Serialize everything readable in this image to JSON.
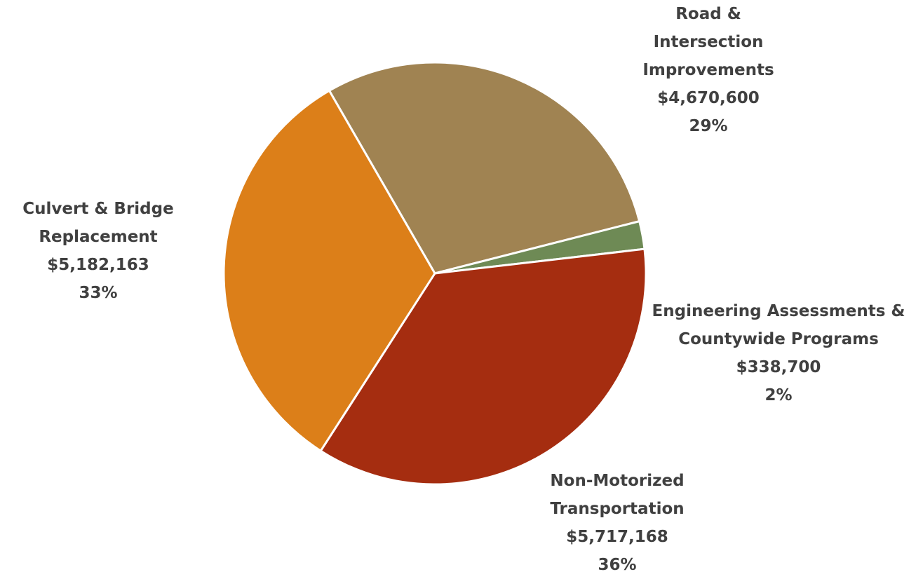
{
  "chart_data": {
    "type": "pie",
    "categories": [
      "Road & Intersection Improvements",
      "Engineering Assessments & Countywide Programs",
      "Non-Motorized Transportation",
      "Culvert & Bridge Replacement"
    ],
    "values": [
      4670600,
      338700,
      5717168,
      5182163
    ],
    "value_labels": [
      "$4,670,600",
      "$338,700",
      "$5,717,168",
      "$5,182,163"
    ],
    "percent_labels": [
      "29%",
      "2%",
      "36%",
      "33%"
    ],
    "colors": [
      "#a08352",
      "#6e8a55",
      "#a52d10",
      "#dc7f19"
    ]
  }
}
